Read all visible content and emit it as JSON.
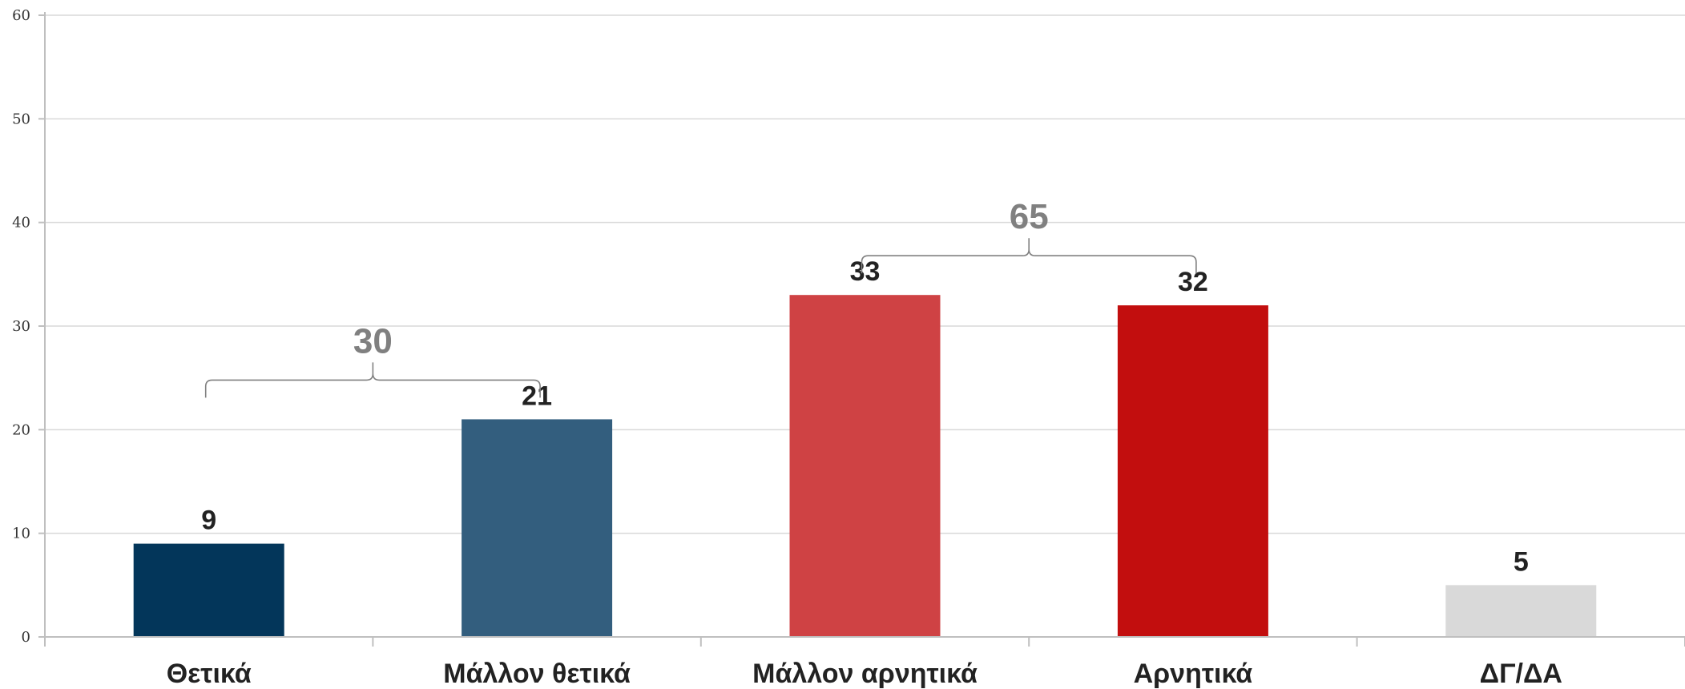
{
  "chart_data": {
    "type": "bar",
    "categories": [
      "Θετικά",
      "Μάλλον θετικά",
      "Μάλλον αρνητικά",
      "Αρνητικά",
      "ΔΓ/ΔΑ"
    ],
    "values": [
      9,
      21,
      33,
      32,
      5
    ],
    "colors": [
      "#03365a",
      "#335e7e",
      "#cf4244",
      "#c20e0e",
      "#d9d9d9"
    ],
    "ylim": [
      0,
      60
    ],
    "yticks": [
      0,
      10,
      20,
      30,
      40,
      50,
      60
    ],
    "grid": true,
    "legend": "none",
    "title": "",
    "xlabel": "",
    "ylabel": "",
    "groups": [
      {
        "label": "30",
        "from": 0,
        "to": 1
      },
      {
        "label": "65",
        "from": 2,
        "to": 3
      }
    ]
  }
}
